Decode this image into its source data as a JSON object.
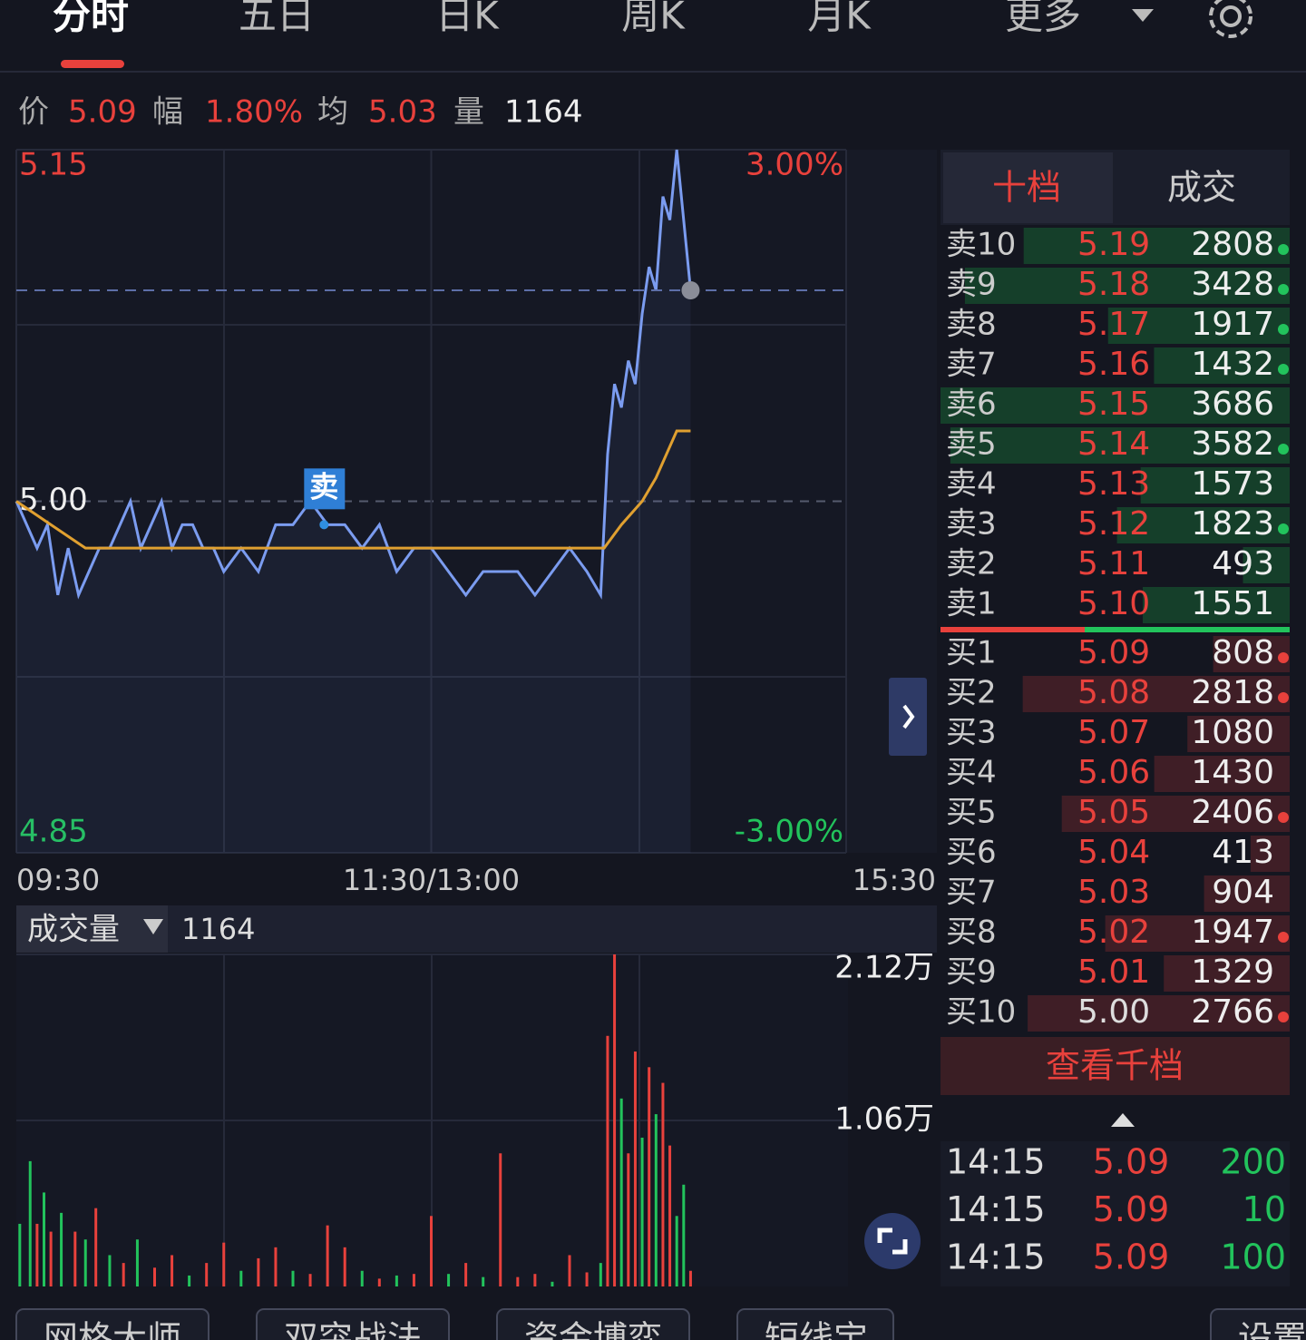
{
  "tabs": [
    "分时",
    "五日",
    "日K",
    "周K",
    "月K",
    "更多"
  ],
  "summary": [
    {
      "label": "价",
      "value": "5.09"
    },
    {
      "label": "幅",
      "value": "1.80%"
    },
    {
      "label": "均",
      "value": "5.03"
    },
    {
      "label": "量",
      "value": "1164"
    }
  ],
  "chart_data": [
    {
      "type": "line",
      "xlim": [
        0,
        240
      ],
      "xticks": [
        {
          "value": 0,
          "label": "09:30"
        },
        {
          "value": 120,
          "label": "11:30/13:00"
        },
        {
          "value": 240,
          "label": "15:30"
        }
      ],
      "ylim": [
        4.85,
        5.15
      ],
      "yticks": [
        4.85,
        {
          "value": 5,
          "label": "5.00"
        },
        5.15
      ],
      "y2lim": [
        -3,
        3
      ],
      "y2ticks": [
        {
          "value": -3,
          "label": "-3.00%"
        },
        {
          "value": 3,
          "label": "3.00%"
        }
      ],
      "series": [
        {
          "color": "#7b9cf0",
          "x": [
            0,
            3,
            6,
            9,
            12,
            15,
            18,
            21,
            24,
            27,
            30,
            33,
            36,
            39,
            42,
            45,
            48,
            51,
            54,
            57,
            60,
            65,
            70,
            75,
            80,
            85,
            90,
            95,
            100,
            105,
            110,
            115,
            120,
            125,
            130,
            135,
            140,
            145,
            150,
            155,
            160,
            165,
            169,
            171,
            173,
            175,
            177,
            179,
            181,
            183,
            185,
            187,
            189,
            191,
            193,
            195
          ],
          "values": [
            5.0,
            4.99,
            4.98,
            4.99,
            4.96,
            4.98,
            4.96,
            4.97,
            4.98,
            4.98,
            4.99,
            5.0,
            4.98,
            4.99,
            5.0,
            4.98,
            4.99,
            4.99,
            4.98,
            4.98,
            4.97,
            4.98,
            4.97,
            4.99,
            4.99,
            5.0,
            4.99,
            4.99,
            4.98,
            4.99,
            4.97,
            4.98,
            4.98,
            4.97,
            4.96,
            4.97,
            4.97,
            4.97,
            4.96,
            4.97,
            4.98,
            4.97,
            4.96,
            5.02,
            5.05,
            5.04,
            5.06,
            5.05,
            5.08,
            5.1,
            5.09,
            5.13,
            5.12,
            5.15,
            5.12,
            5.09
          ]
        },
        {
          "color": "#e0a030",
          "x": [
            0,
            10,
            20,
            170,
            175,
            181,
            185,
            191,
            195
          ],
          "values": [
            5.0,
            4.99,
            4.98,
            4.98,
            4.99,
            5.0,
            5.01,
            5.03,
            5.03
          ]
        }
      ],
      "annotations": [
        {
          "text": "卖",
          "x": 89,
          "y": 4.99
        }
      ]
    },
    {
      "type": "bar",
      "label": "成交量",
      "current": "1164",
      "xlim": [
        0,
        240
      ],
      "ylim": [
        0,
        21200
      ],
      "yticks": [
        {
          "value": 10600,
          "label": "1.06万"
        },
        {
          "value": 21200,
          "label": "2.12万"
        }
      ],
      "x": [
        1,
        4,
        6,
        8,
        10,
        13,
        17,
        20,
        23,
        27,
        31,
        35,
        40,
        45,
        50,
        55,
        60,
        65,
        70,
        75,
        80,
        85,
        90,
        95,
        100,
        105,
        110,
        115,
        120,
        125,
        130,
        135,
        140,
        145,
        150,
        155,
        160,
        165,
        169,
        171,
        173,
        175,
        177,
        179,
        181,
        183,
        185,
        187,
        189,
        191,
        193,
        195
      ],
      "values": [
        4000,
        8000,
        4000,
        6000,
        3500,
        4700,
        3500,
        3000,
        5000,
        2000,
        1500,
        3000,
        1200,
        2000,
        700,
        1500,
        2800,
        1000,
        1800,
        2500,
        1000,
        800,
        3900,
        2500,
        1000,
        500,
        700,
        800,
        4500,
        800,
        1500,
        600,
        8500,
        600,
        800,
        300,
        2000,
        900,
        1500,
        16000,
        21200,
        12000,
        8500,
        15000,
        9500,
        14000,
        11000,
        13000,
        9000,
        4500,
        6500,
        1000
      ],
      "colors": [
        "#22c35c",
        "#22c35c",
        "#e8413c",
        "#22c35c",
        "#e8413c",
        "#22c35c",
        "#e8413c",
        "#22c35c",
        "#e8413c",
        "#22c35c",
        "#e8413c",
        "#22c35c",
        "#e8413c",
        "#e8413c",
        "#22c35c",
        "#e8413c",
        "#e8413c",
        "#22c35c",
        "#e8413c",
        "#e8413c",
        "#22c35c",
        "#e8413c",
        "#e8413c",
        "#e8413c",
        "#22c35c",
        "#e8413c",
        "#22c35c",
        "#e8413c",
        "#e8413c",
        "#22c35c",
        "#e8413c",
        "#22c35c",
        "#e8413c",
        "#e8413c",
        "#e8413c",
        "#22c35c",
        "#e8413c",
        "#e8413c",
        "#22c35c",
        "#e8413c",
        "#e8413c",
        "#22c35c",
        "#e8413c",
        "#e8413c",
        "#22c35c",
        "#e8413c",
        "#22c35c",
        "#e8413c",
        "#e8413c",
        "#22c35c",
        "#22c35c",
        "#e8413c"
      ]
    }
  ],
  "order_book": {
    "tabs": [
      "十档",
      "成交"
    ],
    "asks": [
      {
        "label": "卖10",
        "price": "5.19",
        "volume": 2808,
        "color": "#e8413c",
        "dot": "#22c35c"
      },
      {
        "label": "卖9",
        "price": "5.18",
        "volume": 3428,
        "color": "#e8413c",
        "dot": "#22c35c"
      },
      {
        "label": "卖8",
        "price": "5.17",
        "volume": 1917,
        "color": "#e8413c",
        "dot": "#22c35c"
      },
      {
        "label": "卖7",
        "price": "5.16",
        "volume": 1432,
        "color": "#e8413c",
        "dot": "#22c35c"
      },
      {
        "label": "卖6",
        "price": "5.15",
        "volume": 3686,
        "color": "#e8413c"
      },
      {
        "label": "卖5",
        "price": "5.14",
        "volume": 3582,
        "color": "#e8413c",
        "dot": "#22c35c"
      },
      {
        "label": "卖4",
        "price": "5.13",
        "volume": 1573,
        "color": "#e8413c"
      },
      {
        "label": "卖3",
        "price": "5.12",
        "volume": 1823,
        "color": "#e8413c",
        "dot": "#22c35c"
      },
      {
        "label": "卖2",
        "price": "5.11",
        "volume": 493,
        "color": "#e8413c"
      },
      {
        "label": "卖1",
        "price": "5.10",
        "volume": 1551,
        "color": "#e8413c"
      }
    ],
    "bids": [
      {
        "label": "买1",
        "price": "5.09",
        "volume": 808,
        "color": "#e8413c",
        "dot": "#e8413c"
      },
      {
        "label": "买2",
        "price": "5.08",
        "volume": 2818,
        "color": "#e8413c",
        "dot": "#e8413c"
      },
      {
        "label": "买3",
        "price": "5.07",
        "volume": 1080,
        "color": "#e8413c"
      },
      {
        "label": "买4",
        "price": "5.06",
        "volume": 1430,
        "color": "#e8413c"
      },
      {
        "label": "买5",
        "price": "5.05",
        "volume": 2406,
        "color": "#e8413c",
        "dot": "#e8413c"
      },
      {
        "label": "买6",
        "price": "5.04",
        "volume": 413,
        "color": "#e8413c"
      },
      {
        "label": "买7",
        "price": "5.03",
        "volume": 904,
        "color": "#e8413c"
      },
      {
        "label": "买8",
        "price": "5.02",
        "volume": 1947,
        "color": "#e8413c",
        "dot": "#e8413c"
      },
      {
        "label": "买9",
        "price": "5.01",
        "volume": 1329,
        "color": "#e8413c"
      },
      {
        "label": "买10",
        "price": "5.00",
        "volume": 2766,
        "color": "#dddddd",
        "dot": "#e8413c"
      }
    ],
    "button": "查看千档"
  },
  "trades": [
    {
      "time": "14:15",
      "price": "5.09",
      "volume": 200
    },
    {
      "time": "14:15",
      "price": "5.09",
      "volume": 10
    },
    {
      "time": "14:15",
      "price": "5.09",
      "volume": 100
    }
  ],
  "tools": [
    "网格大师",
    "双突战法",
    "资金博弈",
    "短线宝",
    "设置"
  ]
}
